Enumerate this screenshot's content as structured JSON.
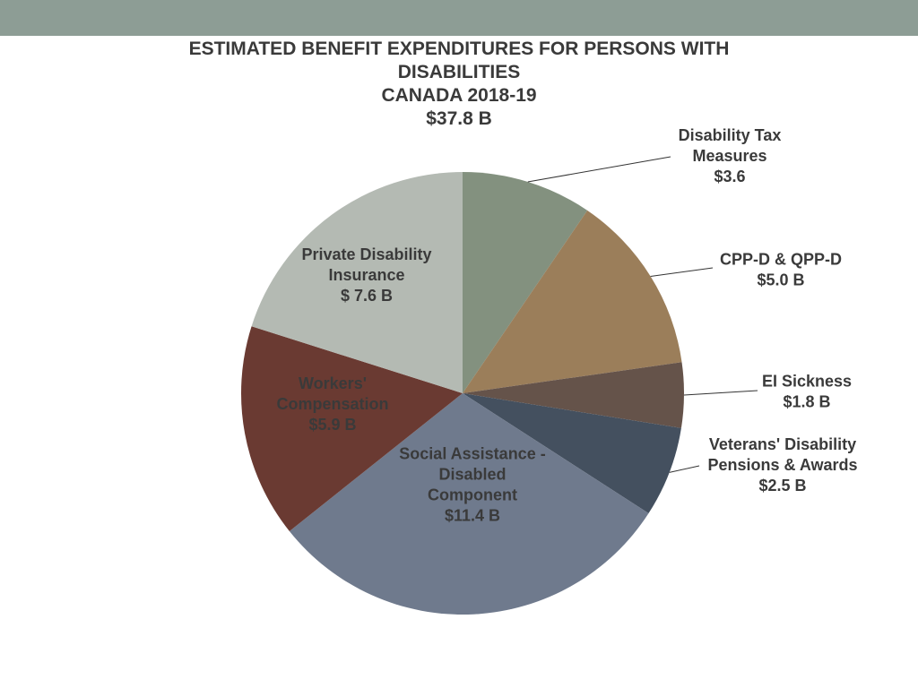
{
  "theme": {
    "band_color": "#8d9d95",
    "text_color": "#3a3a3a",
    "leader_color": "#333333"
  },
  "chart_data": {
    "type": "pie",
    "title": "ESTIMATED BENEFIT EXPENDITURES FOR PERSONS WITH DISABILITIES",
    "subtitle": "CANADA 2018-19",
    "total_label": "$37.8 B",
    "unit": "$ billions",
    "slices": [
      {
        "name": "Disability Tax Measures",
        "value": 3.6,
        "color": "#83917f",
        "label_lines": [
          "Disability Tax",
          "Measures",
          "$3.6"
        ],
        "label_position": "outside"
      },
      {
        "name": "CPP-D & QPP-D",
        "value": 5.0,
        "color": "#9b7e5a",
        "label_lines": [
          "CPP-D & QPP-D",
          "$5.0 B"
        ],
        "label_position": "outside"
      },
      {
        "name": "EI Sickness",
        "value": 1.8,
        "color": "#65534a",
        "label_lines": [
          "EI Sickness",
          "$1.8 B"
        ],
        "label_position": "outside"
      },
      {
        "name": "Veterans' Disability Pensions & Awards",
        "value": 2.5,
        "color": "#44505f",
        "label_lines": [
          "Veterans' Disability",
          "Pensions & Awards",
          "$2.5 B"
        ],
        "label_position": "outside"
      },
      {
        "name": "Social Assistance - Disabled Component",
        "value": 11.4,
        "color": "#6f7a8d",
        "label_lines": [
          "Social Assistance -",
          "Disabled",
          "Component",
          "$11.4 B"
        ],
        "label_position": "inside"
      },
      {
        "name": "Workers' Compensation",
        "value": 5.9,
        "color": "#6a3a32",
        "label_lines": [
          "Workers'",
          "Compensation",
          "$5.9 B"
        ],
        "label_position": "inside"
      },
      {
        "name": "Private Disability Insurance",
        "value": 7.6,
        "color": "#b4bab3",
        "label_lines": [
          "Private Disability",
          "Insurance",
          "$ 7.6 B"
        ],
        "label_position": "inside"
      }
    ]
  }
}
